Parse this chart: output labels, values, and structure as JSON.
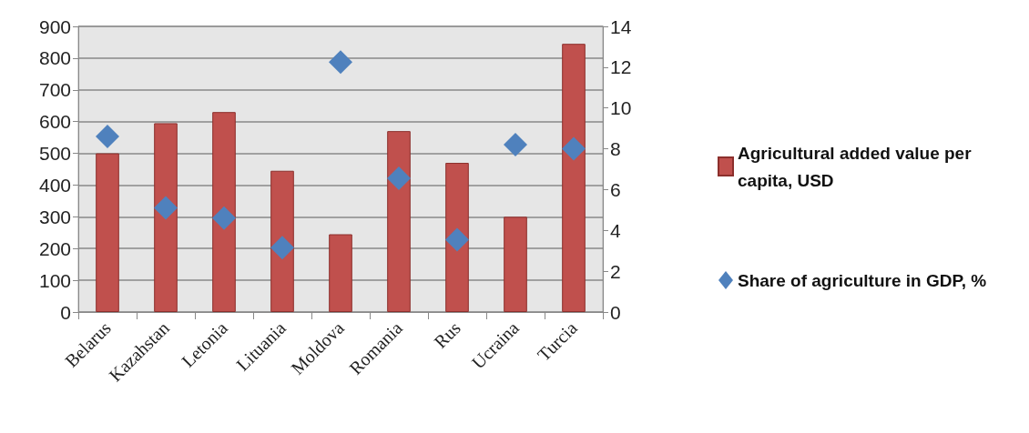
{
  "chart_data": {
    "type": "bar",
    "categories": [
      "Belarus",
      "Kazahstan",
      "Letonia",
      "Lituania",
      "Moldova",
      "Romania",
      "Rus",
      "Ucraina",
      "Turcia"
    ],
    "series": [
      {
        "name": "Agricultural added value per capita, USD",
        "color": "#c0504d",
        "values": [
          500,
          595,
          630,
          445,
          245,
          570,
          470,
          300,
          845
        ]
      },
      {
        "name": "Share of agriculture in GDP, %",
        "type": "scatter",
        "axis": "y2",
        "marker": "diamond",
        "color": "#4f81bd",
        "values": [
          8.6,
          5.1,
          4.6,
          3.15,
          12.25,
          6.55,
          3.55,
          8.2,
          8.0
        ]
      }
    ],
    "ylim": [
      0,
      900
    ],
    "yticks": [
      0,
      100,
      200,
      300,
      400,
      500,
      600,
      700,
      800,
      900
    ],
    "y2lim": [
      0,
      14
    ],
    "y2ticks": [
      0,
      2,
      4,
      6,
      8,
      10,
      12,
      14
    ],
    "grid": "y",
    "legend": "right"
  }
}
